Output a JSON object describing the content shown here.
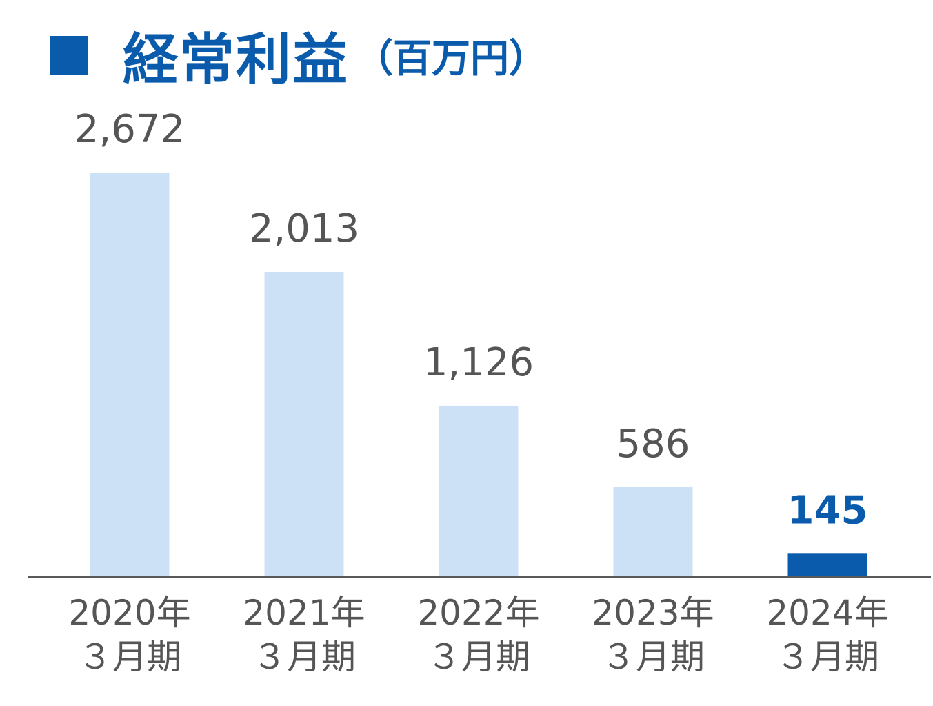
{
  "header": {
    "title": "経常利益",
    "unit": "（百万円）"
  },
  "colors": {
    "accent": "#0a5bab",
    "bar": "#cce0f6",
    "bar_highlight": "#0a5bab",
    "text": "#555555",
    "axis": "#595959"
  },
  "chart_data": {
    "type": "bar",
    "title": "経常利益（百万円）",
    "categories": [
      [
        "2020年",
        "３月期"
      ],
      [
        "2021年",
        "３月期"
      ],
      [
        "2022年",
        "３月期"
      ],
      [
        "2023年",
        "３月期"
      ],
      [
        "2024年",
        "３月期"
      ]
    ],
    "values": [
      2672,
      2013,
      1126,
      586,
      145
    ],
    "value_labels": [
      "2,672",
      "2,013",
      "1,126",
      "586",
      "145"
    ],
    "highlight_index": 4,
    "ylim": [
      0,
      2672
    ],
    "grid": false,
    "legend": "none",
    "xlabel": "",
    "ylabel": ""
  }
}
